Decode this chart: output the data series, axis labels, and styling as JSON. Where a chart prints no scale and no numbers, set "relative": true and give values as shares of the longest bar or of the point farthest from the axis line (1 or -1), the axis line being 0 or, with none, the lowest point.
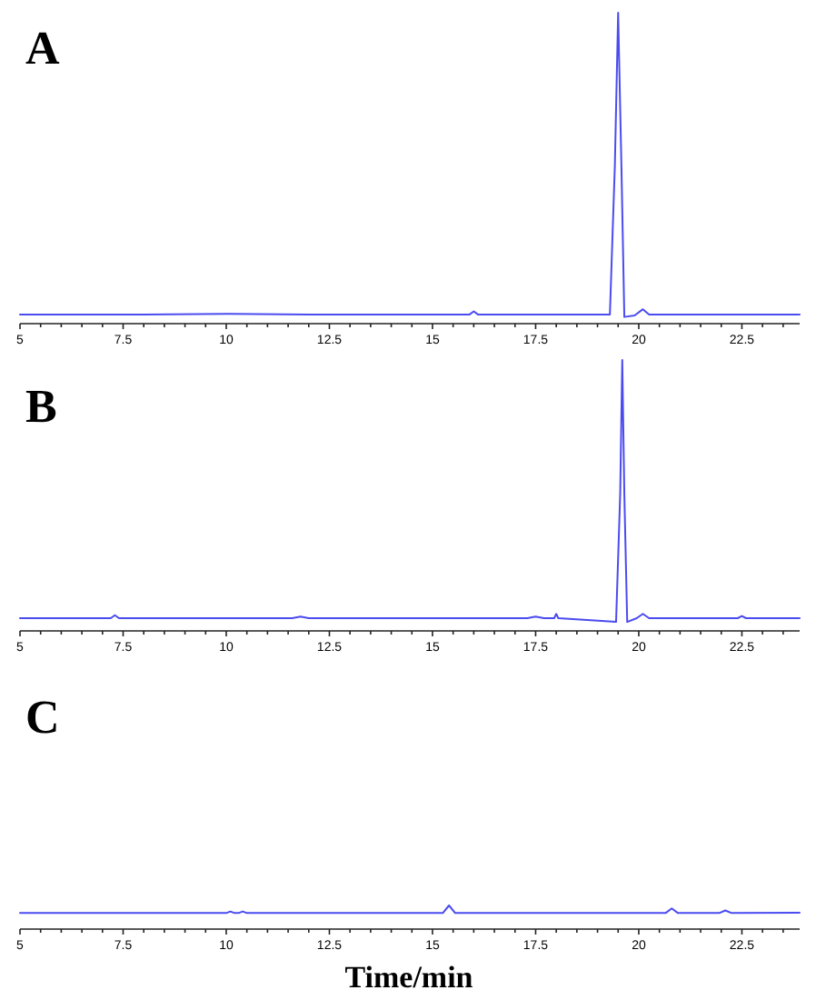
{
  "chart_data": [
    {
      "type": "line",
      "title": "A",
      "relative": true,
      "tick_labels": "x",
      "xlim": [
        5,
        23.9
      ],
      "xticks": [
        5,
        {
          "value": 5.5,
          "label": null
        },
        {
          "value": 6,
          "label": null
        },
        {
          "value": 6.5,
          "label": null
        },
        {
          "value": 7,
          "label": null
        },
        7.5,
        {
          "value": 8,
          "label": null
        },
        {
          "value": 8.5,
          "label": null
        },
        {
          "value": 9,
          "label": null
        },
        {
          "value": 9.5,
          "label": null
        },
        10,
        {
          "value": 10.5,
          "label": null
        },
        {
          "value": 11,
          "label": null
        },
        {
          "value": 11.5,
          "label": null
        },
        {
          "value": 12,
          "label": null
        },
        12.5,
        {
          "value": 13,
          "label": null
        },
        {
          "value": 13.5,
          "label": null
        },
        {
          "value": 14,
          "label": null
        },
        {
          "value": 14.5,
          "label": null
        },
        15,
        {
          "value": 15.5,
          "label": null
        },
        {
          "value": 16,
          "label": null
        },
        {
          "value": 16.5,
          "label": null
        },
        {
          "value": 17,
          "label": null
        },
        17.5,
        {
          "value": 18,
          "label": null
        },
        {
          "value": 18.5,
          "label": null
        },
        {
          "value": 19,
          "label": null
        },
        {
          "value": 19.5,
          "label": null
        },
        20,
        {
          "value": 20.5,
          "label": null
        },
        {
          "value": 21,
          "label": null
        },
        {
          "value": 21.5,
          "label": null
        },
        {
          "value": 22,
          "label": null
        },
        22.5,
        {
          "value": 23,
          "label": null
        },
        {
          "value": 23.5,
          "label": null
        }
      ],
      "series": [
        {
          "color": "#4b4bf0",
          "x": [
            5,
            8,
            10,
            12,
            15.9,
            16,
            16.1,
            19.3,
            19.42,
            19.5,
            19.58,
            19.65,
            19.9,
            20.1,
            20.25,
            23.9
          ],
          "values": [
            0.018,
            0.018,
            0.02,
            0.018,
            0.018,
            0.028,
            0.018,
            0.018,
            0.5,
            1,
            0.5,
            0.01,
            0.015,
            0.035,
            0.018,
            0.018
          ]
        }
      ]
    },
    {
      "type": "line",
      "title": "B",
      "relative": true,
      "tick_labels": "x",
      "xlim": [
        5,
        23.9
      ],
      "xticks": [
        5,
        {
          "value": 5.5,
          "label": null
        },
        {
          "value": 6,
          "label": null
        },
        {
          "value": 6.5,
          "label": null
        },
        {
          "value": 7,
          "label": null
        },
        7.5,
        {
          "value": 8,
          "label": null
        },
        {
          "value": 8.5,
          "label": null
        },
        {
          "value": 9,
          "label": null
        },
        {
          "value": 9.5,
          "label": null
        },
        10,
        {
          "value": 10.5,
          "label": null
        },
        {
          "value": 11,
          "label": null
        },
        {
          "value": 11.5,
          "label": null
        },
        {
          "value": 12,
          "label": null
        },
        12.5,
        {
          "value": 13,
          "label": null
        },
        {
          "value": 13.5,
          "label": null
        },
        {
          "value": 14,
          "label": null
        },
        {
          "value": 14.5,
          "label": null
        },
        15,
        {
          "value": 15.5,
          "label": null
        },
        {
          "value": 16,
          "label": null
        },
        {
          "value": 16.5,
          "label": null
        },
        {
          "value": 17,
          "label": null
        },
        17.5,
        {
          "value": 18,
          "label": null
        },
        {
          "value": 18.5,
          "label": null
        },
        {
          "value": 19,
          "label": null
        },
        {
          "value": 19.5,
          "label": null
        },
        20,
        {
          "value": 20.5,
          "label": null
        },
        {
          "value": 21,
          "label": null
        },
        {
          "value": 21.5,
          "label": null
        },
        {
          "value": 22,
          "label": null
        },
        22.5,
        {
          "value": 23,
          "label": null
        },
        {
          "value": 23.5,
          "label": null
        }
      ],
      "series": [
        {
          "color": "#4b4bf0",
          "x": [
            5,
            7.2,
            7.3,
            7.4,
            11.6,
            11.8,
            12,
            17.3,
            17.5,
            17.7,
            17.95,
            18,
            18.05,
            19.45,
            19.55,
            19.6,
            19.65,
            19.72,
            19.95,
            20.1,
            20.25,
            22.4,
            22.5,
            22.6,
            23.9
          ],
          "values": [
            0.034,
            0.034,
            0.045,
            0.034,
            0.034,
            0.04,
            0.034,
            0.034,
            0.04,
            0.034,
            0.034,
            0.05,
            0.034,
            0.02,
            0.5,
            1,
            0.5,
            0.02,
            0.034,
            0.05,
            0.034,
            0.034,
            0.042,
            0.034,
            0.034
          ]
        }
      ]
    },
    {
      "type": "line",
      "title": "C",
      "relative": true,
      "tick_labels": "x",
      "xlabel": "Time/min",
      "xlim": [
        5,
        23.9
      ],
      "xticks": [
        5,
        {
          "value": 5.5,
          "label": null
        },
        {
          "value": 6,
          "label": null
        },
        {
          "value": 6.5,
          "label": null
        },
        {
          "value": 7,
          "label": null
        },
        7.5,
        {
          "value": 8,
          "label": null
        },
        {
          "value": 8.5,
          "label": null
        },
        {
          "value": 9,
          "label": null
        },
        {
          "value": 9.5,
          "label": null
        },
        10,
        {
          "value": 10.5,
          "label": null
        },
        {
          "value": 11,
          "label": null
        },
        {
          "value": 11.5,
          "label": null
        },
        {
          "value": 12,
          "label": null
        },
        12.5,
        {
          "value": 13,
          "label": null
        },
        {
          "value": 13.5,
          "label": null
        },
        {
          "value": 14,
          "label": null
        },
        {
          "value": 14.5,
          "label": null
        },
        15,
        {
          "value": 15.5,
          "label": null
        },
        {
          "value": 16,
          "label": null
        },
        {
          "value": 16.5,
          "label": null
        },
        {
          "value": 17,
          "label": null
        },
        17.5,
        {
          "value": 18,
          "label": null
        },
        {
          "value": 18.5,
          "label": null
        },
        {
          "value": 19,
          "label": null
        },
        {
          "value": 19.5,
          "label": null
        },
        20,
        {
          "value": 20.5,
          "label": null
        },
        {
          "value": 21,
          "label": null
        },
        {
          "value": 21.5,
          "label": null
        },
        {
          "value": 22,
          "label": null
        },
        22.5,
        {
          "value": 23,
          "label": null
        },
        {
          "value": 23.5,
          "label": null
        }
      ],
      "series": [
        {
          "color": "#4b4bf0",
          "x": [
            5,
            10,
            10.1,
            10.2,
            10.3,
            10.4,
            10.5,
            15.25,
            15.4,
            15.55,
            20.65,
            20.8,
            20.95,
            21.95,
            22.1,
            22.25,
            23.9
          ],
          "values": [
            0.62,
            0.62,
            0.7,
            0.62,
            0.62,
            0.7,
            0.62,
            0.62,
            1,
            0.62,
            0.62,
            0.85,
            0.62,
            0.62,
            0.75,
            0.62,
            0.64
          ]
        }
      ]
    }
  ]
}
